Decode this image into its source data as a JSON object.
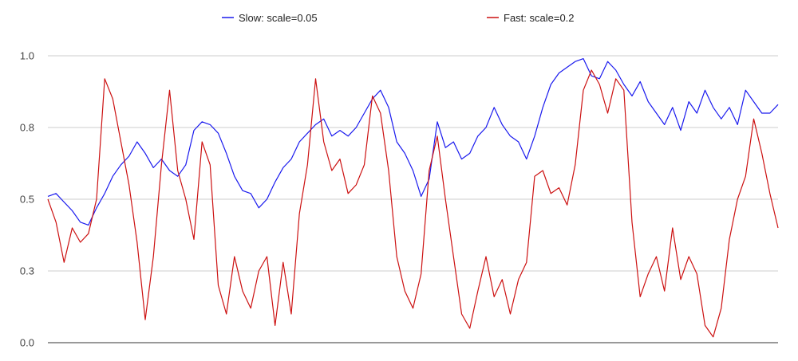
{
  "chart_data": {
    "type": "line",
    "title": "",
    "xlabel": "",
    "ylabel": "",
    "ylim": [
      0,
      1
    ],
    "yticks": [
      {
        "value": 0.0,
        "label": "0.0"
      },
      {
        "value": 0.25,
        "label": "0.3"
      },
      {
        "value": 0.5,
        "label": "0.5"
      },
      {
        "value": 0.75,
        "label": "0.8"
      },
      {
        "value": 1.0,
        "label": "1.0"
      }
    ],
    "grid": true,
    "legend_position": "top",
    "x": [
      0,
      10,
      20,
      30,
      40,
      50,
      60,
      70,
      80,
      90,
      100,
      110,
      120,
      130,
      140,
      150,
      160,
      170,
      180,
      190,
      200,
      210,
      220,
      230,
      240,
      250,
      260,
      270,
      280,
      290,
      300,
      310,
      320,
      330,
      340,
      350,
      360,
      370,
      380,
      390,
      400,
      410,
      420,
      430,
      440,
      450,
      460,
      470,
      480,
      490,
      500,
      510,
      520,
      530,
      540,
      550,
      560,
      570,
      580,
      590,
      600,
      610,
      620,
      630,
      640,
      650,
      660,
      670,
      680,
      690,
      700,
      710,
      720,
      730,
      740,
      750,
      760,
      770,
      780,
      790,
      800,
      810,
      820,
      830,
      840,
      850,
      860,
      870,
      880,
      890,
      900
    ],
    "series": [
      {
        "name": "Slow: scale=0.05",
        "color": "#1a1aee",
        "values": [
          0.51,
          0.52,
          0.49,
          0.46,
          0.42,
          0.41,
          0.47,
          0.52,
          0.58,
          0.62,
          0.65,
          0.7,
          0.66,
          0.61,
          0.64,
          0.6,
          0.58,
          0.62,
          0.74,
          0.77,
          0.76,
          0.73,
          0.66,
          0.58,
          0.53,
          0.52,
          0.47,
          0.5,
          0.56,
          0.61,
          0.64,
          0.7,
          0.73,
          0.76,
          0.78,
          0.72,
          0.74,
          0.72,
          0.75,
          0.8,
          0.85,
          0.88,
          0.82,
          0.7,
          0.66,
          0.6,
          0.51,
          0.57,
          0.77,
          0.68,
          0.7,
          0.64,
          0.66,
          0.72,
          0.75,
          0.82,
          0.76,
          0.72,
          0.7,
          0.64,
          0.72,
          0.82,
          0.9,
          0.94,
          0.96,
          0.98,
          0.99,
          0.93,
          0.92,
          0.98,
          0.95,
          0.9,
          0.86,
          0.91,
          0.84,
          0.8,
          0.76,
          0.82,
          0.74,
          0.84,
          0.8,
          0.88,
          0.82,
          0.78,
          0.82,
          0.76,
          0.88,
          0.84,
          0.8,
          0.8,
          0.83
        ]
      },
      {
        "name": "Fast: scale=0.2",
        "color": "#cc1111",
        "values": [
          0.5,
          0.42,
          0.28,
          0.4,
          0.35,
          0.38,
          0.5,
          0.92,
          0.85,
          0.7,
          0.55,
          0.35,
          0.08,
          0.3,
          0.62,
          0.88,
          0.6,
          0.5,
          0.36,
          0.7,
          0.62,
          0.2,
          0.1,
          0.3,
          0.18,
          0.12,
          0.25,
          0.3,
          0.06,
          0.28,
          0.1,
          0.45,
          0.62,
          0.92,
          0.7,
          0.6,
          0.64,
          0.52,
          0.55,
          0.62,
          0.86,
          0.8,
          0.6,
          0.3,
          0.18,
          0.12,
          0.24,
          0.6,
          0.72,
          0.5,
          0.3,
          0.1,
          0.05,
          0.18,
          0.3,
          0.16,
          0.22,
          0.1,
          0.22,
          0.28,
          0.58,
          0.6,
          0.52,
          0.54,
          0.48,
          0.62,
          0.88,
          0.95,
          0.9,
          0.8,
          0.92,
          0.88,
          0.42,
          0.16,
          0.24,
          0.3,
          0.18,
          0.4,
          0.22,
          0.3,
          0.24,
          0.06,
          0.02,
          0.12,
          0.36,
          0.5,
          0.58,
          0.78,
          0.66,
          0.52,
          0.4
        ]
      }
    ]
  },
  "legend": [
    {
      "label": "Slow: scale=0.05",
      "color": "#1a1aee"
    },
    {
      "label": "Fast: scale=0.2",
      "color": "#cc1111"
    }
  ]
}
